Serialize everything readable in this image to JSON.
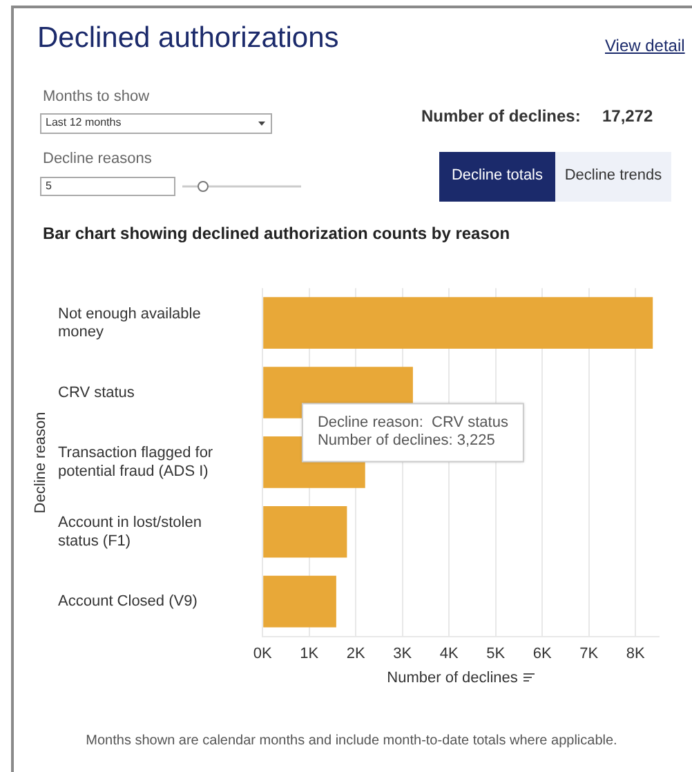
{
  "chart_data": {
    "type": "bar",
    "orientation": "horizontal",
    "title": "Declined authorizations",
    "subtitle": "Bar chart showing declined authorization counts by reason",
    "categories": [
      "Not enough available money",
      "CRV status",
      "Transaction flagged for potential fraud (ADS I)",
      "Account in lost/stolen status (F1)",
      "Account Closed (V9)"
    ],
    "values": [
      8370,
      3225,
      2200,
      1810,
      1580
    ],
    "color": "#e8a838",
    "xlim": [
      0,
      8500
    ],
    "xticks": [
      {
        "value": 0,
        "label": "0K"
      },
      {
        "value": 1000,
        "label": "1K"
      },
      {
        "value": 2000,
        "label": "2K"
      },
      {
        "value": 3000,
        "label": "3K"
      },
      {
        "value": 4000,
        "label": "4K"
      },
      {
        "value": 5000,
        "label": "5K"
      },
      {
        "value": 6000,
        "label": "6K"
      },
      {
        "value": 7000,
        "label": "7K"
      },
      {
        "value": 8000,
        "label": "8K"
      }
    ],
    "xlabel": "Number of declines",
    "ylabel": "Decline reason",
    "grid": "x",
    "annotations": [
      "View detail",
      "Months to show",
      "Last 12 months",
      "Decline reasons",
      "5",
      "Number of declines:",
      "17,272",
      "Decline totals",
      "Decline trends",
      {
        "text": "Decline reason:  CRV status",
        "x": 3225,
        "y": "CRV status"
      },
      {
        "text": "Number of declines: 3,225",
        "x": 3225,
        "y": "CRV status"
      },
      "Months shown are calendar months and include month-to-date totals where applicable."
    ]
  }
}
